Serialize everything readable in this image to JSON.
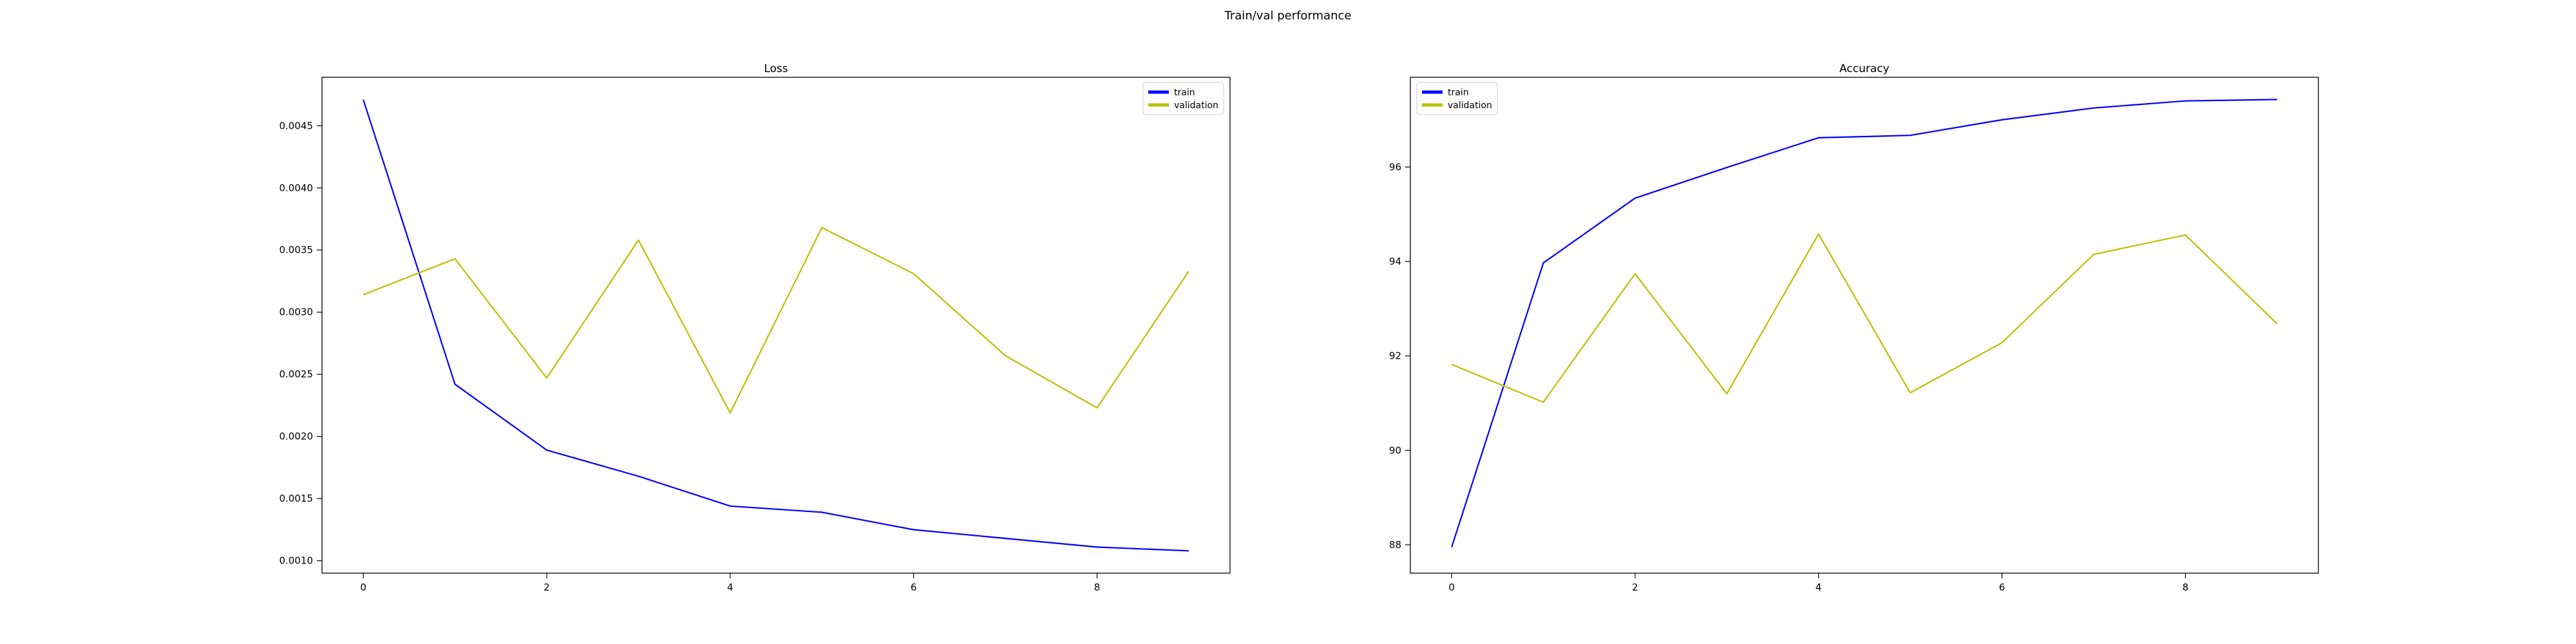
{
  "figure": {
    "suptitle": "Train/val performance"
  },
  "chart_data": [
    {
      "type": "line",
      "title": "Loss",
      "xlabel": "",
      "ylabel": "",
      "x": [
        0,
        1,
        2,
        3,
        4,
        5,
        6,
        7,
        8,
        9
      ],
      "xticks": [
        0,
        2,
        4,
        6,
        8
      ],
      "xlim": [
        -0.45,
        9.45
      ],
      "ylim": [
        0.0009,
        0.00489
      ],
      "yticks": [
        0.001,
        0.0015,
        0.002,
        0.0025,
        0.003,
        0.0035,
        0.004,
        0.0045
      ],
      "ytick_labels": [
        "0.0010",
        "0.0015",
        "0.0020",
        "0.0025",
        "0.0030",
        "0.0035",
        "0.0040",
        "0.0045"
      ],
      "grid": false,
      "legend": "top-right",
      "series": [
        {
          "name": "train",
          "color": "#0000ff",
          "values": [
            0.00471,
            0.00242,
            0.00189,
            0.00168,
            0.00144,
            0.00139,
            0.00125,
            0.00118,
            0.00111,
            0.00108
          ]
        },
        {
          "name": "validation",
          "color": "#bfbf00",
          "values": [
            0.00314,
            0.00343,
            0.00247,
            0.00358,
            0.00219,
            0.00368,
            0.00331,
            0.00265,
            0.00223,
            0.00333
          ]
        }
      ]
    },
    {
      "type": "line",
      "title": "Accuracy",
      "xlabel": "",
      "ylabel": "",
      "x": [
        0,
        1,
        2,
        3,
        4,
        5,
        6,
        7,
        8,
        9
      ],
      "xticks": [
        0,
        2,
        4,
        6,
        8
      ],
      "xlim": [
        -0.45,
        9.45
      ],
      "ylim": [
        87.4,
        97.9
      ],
      "yticks": [
        88,
        90,
        92,
        94,
        96
      ],
      "ytick_labels": [
        "88",
        "90",
        "92",
        "94",
        "96"
      ],
      "grid": false,
      "legend": "top-left",
      "series": [
        {
          "name": "train",
          "color": "#0000ff",
          "values": [
            87.95,
            93.97,
            95.34,
            95.99,
            96.62,
            96.67,
            97.0,
            97.25,
            97.4,
            97.43
          ]
        },
        {
          "name": "validation",
          "color": "#bfbf00",
          "values": [
            91.82,
            91.02,
            93.74,
            91.2,
            94.58,
            91.22,
            92.28,
            94.15,
            94.56,
            92.68
          ]
        }
      ]
    }
  ]
}
